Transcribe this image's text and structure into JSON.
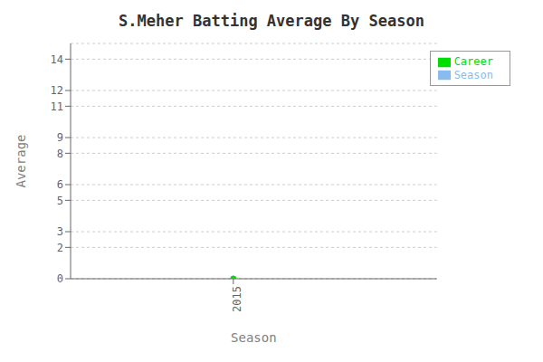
{
  "chart_data": {
    "type": "line",
    "title": "S.Meher Batting Average By Season",
    "xlabel": "Season",
    "ylabel": "Average",
    "x": [
      2015
    ],
    "series": [
      {
        "name": "Season",
        "color": "#88bbee",
        "values": [
          0
        ]
      },
      {
        "name": "Career",
        "color": "#00dd00",
        "values": [
          0
        ]
      }
    ],
    "xlim": [
      2014.6,
      2015.5
    ],
    "xticks": [
      2015
    ],
    "ylim": [
      0,
      15
    ],
    "yticks": [
      0,
      2,
      3,
      5,
      6,
      8,
      9,
      11,
      12,
      14
    ],
    "grid": "y",
    "legend": "upper right"
  }
}
